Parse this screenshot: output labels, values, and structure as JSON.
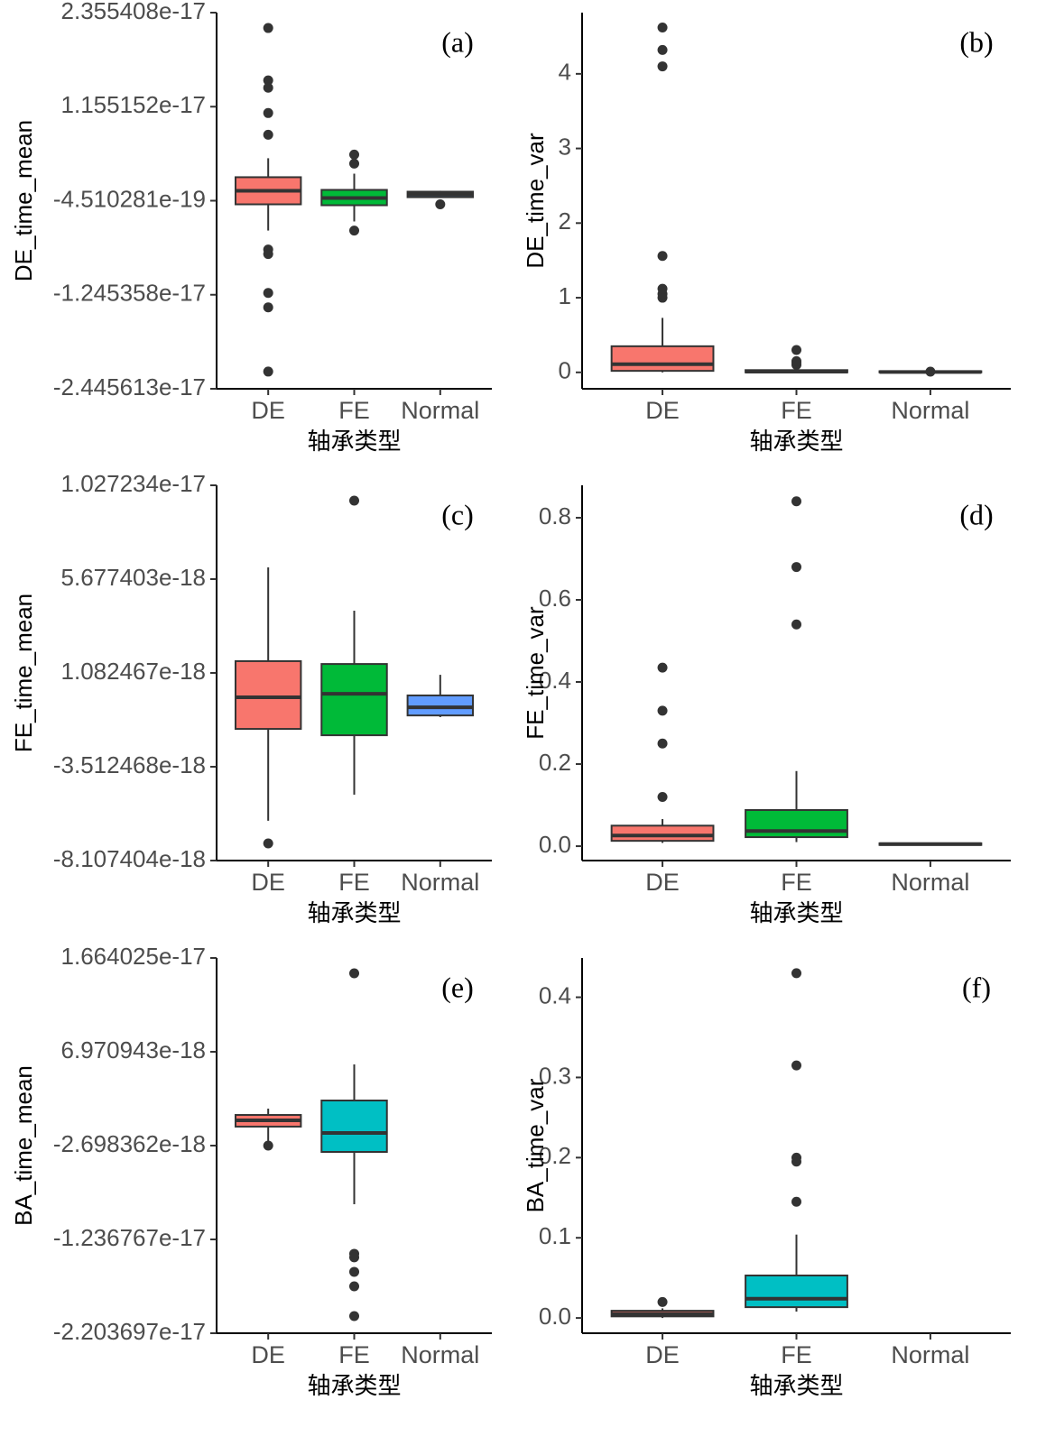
{
  "chart_data": [
    {
      "type": "box",
      "annotation": "(a)",
      "y_label": "DE_time_mean",
      "x_label": "轴承类型",
      "categories": [
        "DE",
        "FE",
        "Normal"
      ],
      "colors": [
        "#F8766D",
        "#00BA38",
        "#619CFF"
      ],
      "ylim": [
        -2.445613e-17,
        2.355408e-17
      ],
      "yticks": [
        2.355408e-17,
        1.155152e-17,
        -4.510281e-19,
        -1.245358e-17,
        -2.445613e-17
      ],
      "boxes": [
        {
          "low": -4.26e-18,
          "q1": -9.13e-19,
          "median": 8.18e-19,
          "q3": 2.549e-18,
          "high": 4.97e-18,
          "outliers": [
            2.159e-17,
            1.49e-17,
            1.397e-17,
            1.074e-17,
            7.97e-18,
            -6.68e-18,
            -7.26e-18,
            -1.222e-17,
            -1.407e-17,
            -2.226e-17
          ]
        },
        {
          "low": -3.1e-18,
          "q1": -1.03e-18,
          "median": -1.1e-19,
          "q3": 9.3e-19,
          "high": 3e-18,
          "outliers": [
            5.43e-18,
            4.28e-18,
            -4.26e-18
          ]
        },
        {
          "low": -1.1e-19,
          "q1": 0,
          "median": 3.5e-19,
          "q3": 7e-19,
          "high": 8.2e-19,
          "outliers": [
            -9.1e-19
          ]
        }
      ]
    },
    {
      "type": "box",
      "annotation": "(b)",
      "y_label": "DE_time_var",
      "x_label": "轴承类型",
      "categories": [
        "DE",
        "FE",
        "Normal"
      ],
      "colors": [
        "#F8766D",
        "#00BA38",
        "#619CFF"
      ],
      "ylim": [
        -0.22,
        4.82
      ],
      "yticks": [
        0,
        1,
        2,
        3,
        4
      ],
      "boxes": [
        {
          "low": 0,
          "q1": 0.02,
          "median": 0.11,
          "q3": 0.35,
          "high": 0.73,
          "outliers": [
            1.0,
            1.05,
            1.12,
            1.56,
            4.1,
            4.32,
            4.62
          ]
        },
        {
          "low": 0,
          "q1": 0,
          "median": 0.01,
          "q3": 0.03,
          "high": 0.07,
          "outliers": [
            0.1,
            0.13,
            0.15,
            0.3
          ]
        },
        {
          "low": 0,
          "q1": 0,
          "median": 0.005,
          "q3": 0.015,
          "high": 0.02,
          "outliers": [
            0.01
          ]
        }
      ]
    },
    {
      "type": "box",
      "annotation": "(c)",
      "y_label": "FE_time_mean",
      "x_label": "轴承类型",
      "categories": [
        "DE",
        "FE",
        "Normal"
      ],
      "colors": [
        "#F8766D",
        "#00BA38",
        "#619CFF"
      ],
      "ylim": [
        -8.107404e-18,
        1.027234e-17
      ],
      "yticks": [
        1.027234e-17,
        5.677403e-18,
        1.082467e-18,
        -3.512468e-18,
        -8.107404e-18
      ],
      "boxes": [
        {
          "low": -6.16e-18,
          "q1": -1.66e-18,
          "median": -1.1e-19,
          "q3": 1.66e-18,
          "high": 6.25e-18,
          "outliers": [
            -7.27e-18
          ]
        },
        {
          "low": -4.88e-18,
          "q1": -1.97e-18,
          "median": 6e-20,
          "q3": 1.52e-18,
          "high": 4.13e-18,
          "outliers": [
            9.52e-18
          ]
        },
        {
          "low": -1.08e-18,
          "q1": -1e-18,
          "median": -6e-19,
          "q3": -2e-20,
          "high": 9.9e-19,
          "outliers": []
        }
      ]
    },
    {
      "type": "box",
      "annotation": "(d)",
      "y_label": "FE_time_var",
      "x_label": "轴承类型",
      "categories": [
        "DE",
        "FE",
        "Normal"
      ],
      "colors": [
        "#F8766D",
        "#00BA38",
        "#619CFF"
      ],
      "ylim": [
        -0.035,
        0.879
      ],
      "yticks": [
        {
          "value": 0,
          "label": "0.0"
        },
        0.2,
        0.4,
        0.6,
        0.8
      ],
      "boxes": [
        {
          "low": 0.008,
          "q1": 0.013,
          "median": 0.026,
          "q3": 0.05,
          "high": 0.066,
          "outliers": [
            0.12,
            0.25,
            0.33,
            0.435
          ]
        },
        {
          "low": 0.01,
          "q1": 0.022,
          "median": 0.037,
          "q3": 0.088,
          "high": 0.183,
          "outliers": [
            0.54,
            0.68,
            0.84
          ]
        },
        {
          "low": 0.002,
          "q1": 0.003,
          "median": 0.005,
          "q3": 0.007,
          "high": 0.008,
          "outliers": []
        }
      ]
    },
    {
      "type": "box",
      "annotation": "(e)",
      "y_label": "BA_time_mean",
      "x_label": "轴承类型",
      "categories": [
        "DE",
        "FE",
        "Normal"
      ],
      "colors": [
        "#F8766D",
        "#00BFC4",
        "#619CFF"
      ],
      "ylim": [
        -2.203697e-17,
        1.664025e-17
      ],
      "yticks": [
        1.664025e-17,
        6.970943e-18,
        -2.698362e-18,
        -1.236767e-17,
        -2.203697e-17
      ],
      "boxes": [
        {
          "low": -2.51e-18,
          "q1": -7.4e-19,
          "median": -9.5e-20,
          "q3": 4.6e-19,
          "high": 1.11e-18,
          "outliers": [
            -2.7e-18
          ]
        },
        {
          "low": -8.74e-18,
          "q1": -3.35e-18,
          "median": -1.4e-18,
          "q3": 1.95e-18,
          "high": 5.67e-18,
          "outliers": [
            1.506e-17,
            -1.385e-17,
            -1.422e-17,
            -1.571e-17,
            -1.72e-17,
            -2.027e-17
          ]
        },
        null
      ]
    },
    {
      "type": "box",
      "annotation": "(f)",
      "y_label": "BA_time_var",
      "x_label": "轴承类型",
      "categories": [
        "DE",
        "FE",
        "Normal"
      ],
      "colors": [
        "#F8766D",
        "#00BFC4",
        "#619CFF"
      ],
      "ylim": [
        -0.019,
        0.449
      ],
      "yticks": [
        {
          "value": 0,
          "label": "0.0"
        },
        0.1,
        0.2,
        0.3,
        0.4
      ],
      "boxes": [
        {
          "low": 0,
          "q1": 0.002,
          "median": 0.005,
          "q3": 0.009,
          "high": 0.012,
          "outliers": [
            0.02
          ]
        },
        {
          "low": 0.008,
          "q1": 0.0135,
          "median": 0.024,
          "q3": 0.053,
          "high": 0.104,
          "outliers": [
            0.145,
            0.195,
            0.2,
            0.315,
            0.43
          ]
        },
        null
      ]
    }
  ]
}
